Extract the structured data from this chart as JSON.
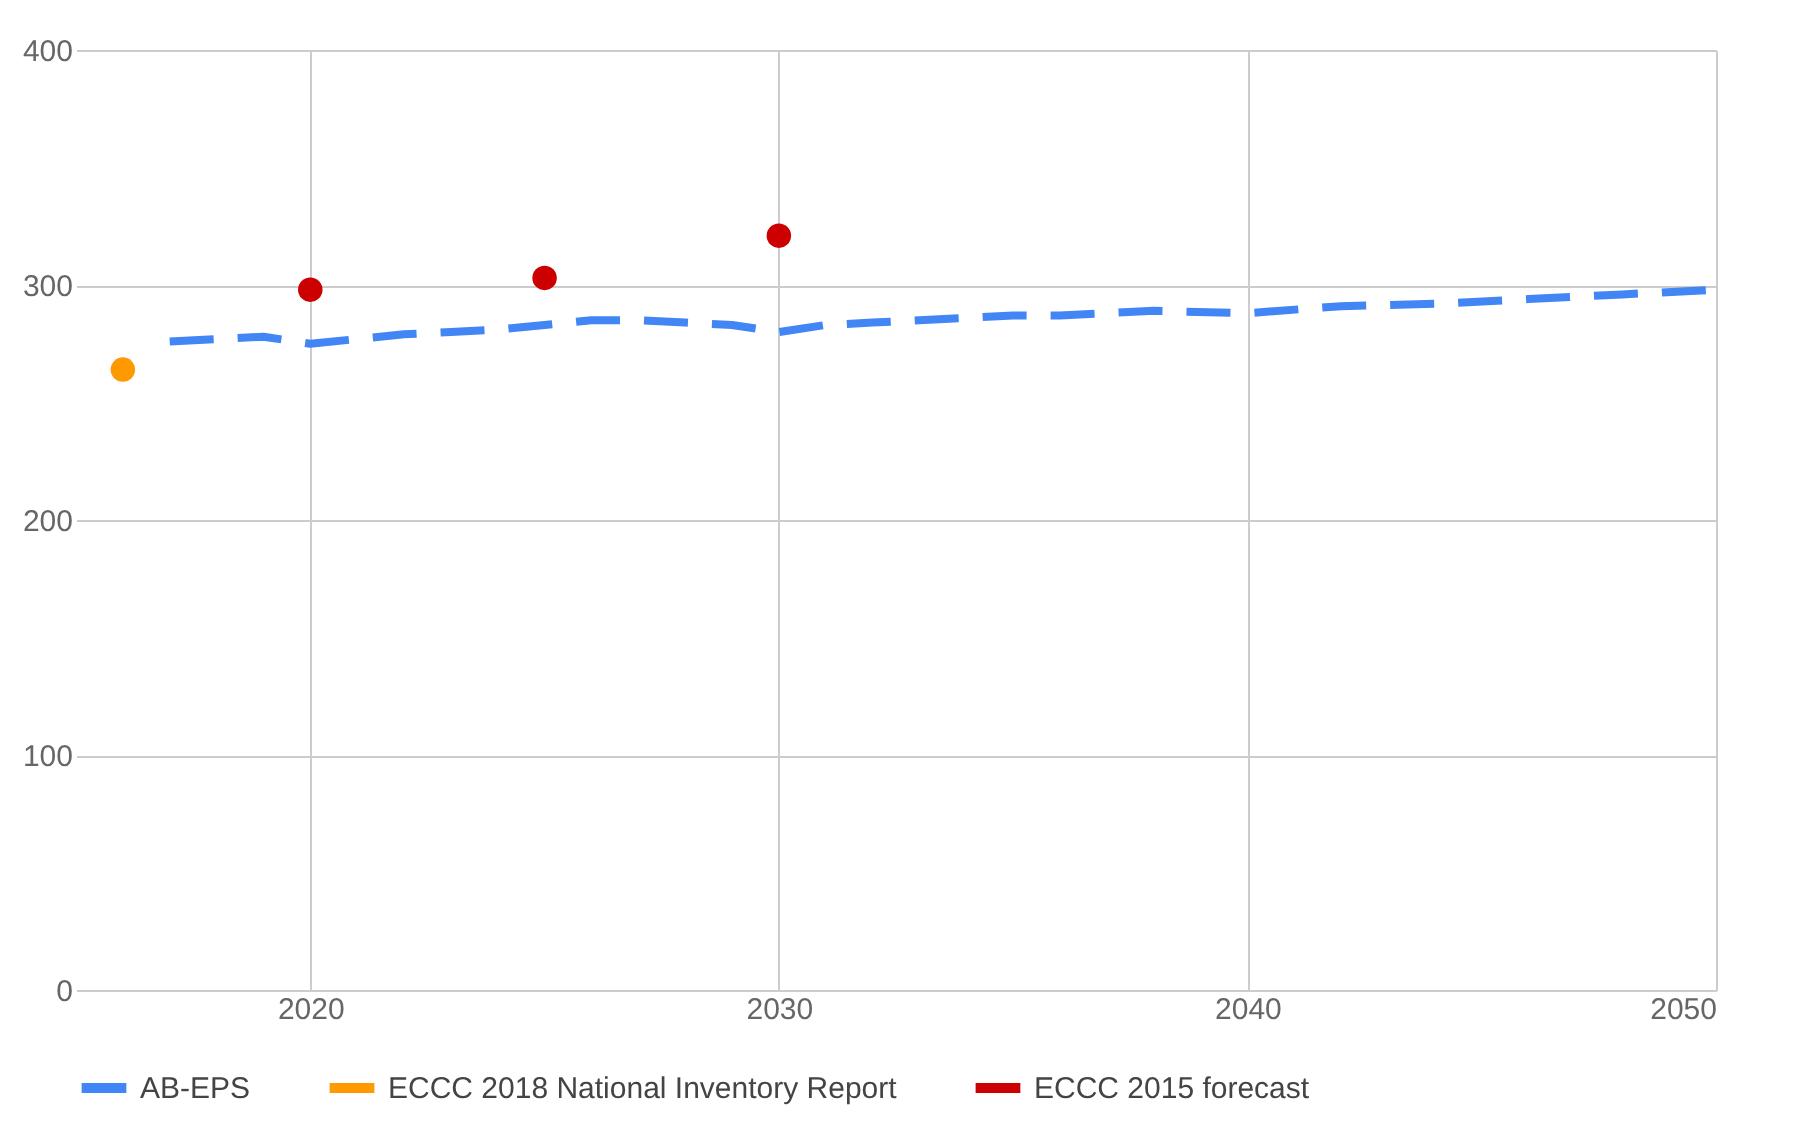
{
  "chart_data": {
    "type": "line",
    "xlim": [
      2015,
      2050
    ],
    "xticks": [
      2020,
      2030,
      2040,
      2050
    ],
    "ylim": [
      0,
      400
    ],
    "yticks": [
      0,
      100,
      200,
      300,
      400
    ],
    "grid": true,
    "legend": "bottom",
    "series": [
      {
        "name": "AB-EPS",
        "color": "#4285f4",
        "line_style": "dashed",
        "marker": "none",
        "x": [
          2017,
          2018,
          2019,
          2020,
          2021,
          2022,
          2023,
          2024,
          2025,
          2026,
          2027,
          2028,
          2029,
          2030,
          2031,
          2032,
          2033,
          2034,
          2035,
          2036,
          2038,
          2040,
          2042,
          2044,
          2046,
          2048,
          2050
        ],
        "values": [
          276,
          277,
          278,
          275,
          277,
          279,
          280,
          281,
          283,
          285,
          285,
          284,
          283,
          280,
          283,
          284,
          285,
          286,
          287,
          287,
          289,
          288,
          291,
          292,
          294,
          296,
          298
        ]
      },
      {
        "name": "ECCC 2018 National Inventory Report",
        "color": "#ff9900",
        "type": "scatter",
        "marker": "circle",
        "x": [
          2016
        ],
        "values": [
          264
        ]
      },
      {
        "name": "ECCC 2015 forecast",
        "color": "#cc0000",
        "type": "scatter",
        "marker": "circle",
        "x": [
          2020,
          2025,
          2030
        ],
        "values": [
          298,
          303,
          321
        ]
      }
    ]
  }
}
